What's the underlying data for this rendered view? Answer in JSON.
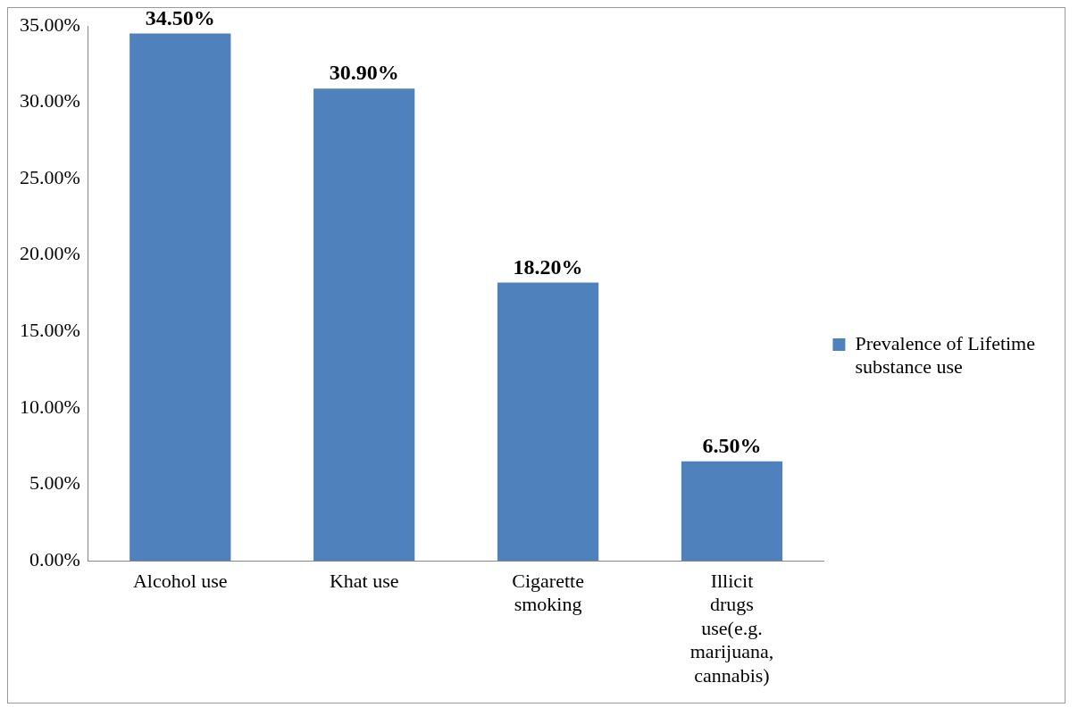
{
  "chart_data": {
    "type": "bar",
    "categories": [
      "Alcohol use",
      "Khat use",
      "Cigarette smoking",
      "Illicit drugs use(e.g. marijuana, cannabis)"
    ],
    "series": [
      {
        "name": "Prevalence of Lifetime substance use",
        "color": "#4f81bd",
        "values": [
          34.5,
          30.9,
          18.2,
          6.5
        ],
        "value_labels": [
          "34.50%",
          "30.90%",
          "18.20%",
          "6.50%"
        ]
      }
    ],
    "ylim": [
      0,
      35
    ],
    "yticks": [
      {
        "value": 0,
        "label": "0.00%"
      },
      {
        "value": 5,
        "label": "5.00%"
      },
      {
        "value": 10,
        "label": "10.00%"
      },
      {
        "value": 15,
        "label": "15.00%"
      },
      {
        "value": 20,
        "label": "20.00%"
      },
      {
        "value": 25,
        "label": "25.00%"
      },
      {
        "value": 30,
        "label": "30.00%"
      },
      {
        "value": 35,
        "label": "35.00%"
      }
    ],
    "grid": false,
    "legend": "right"
  }
}
